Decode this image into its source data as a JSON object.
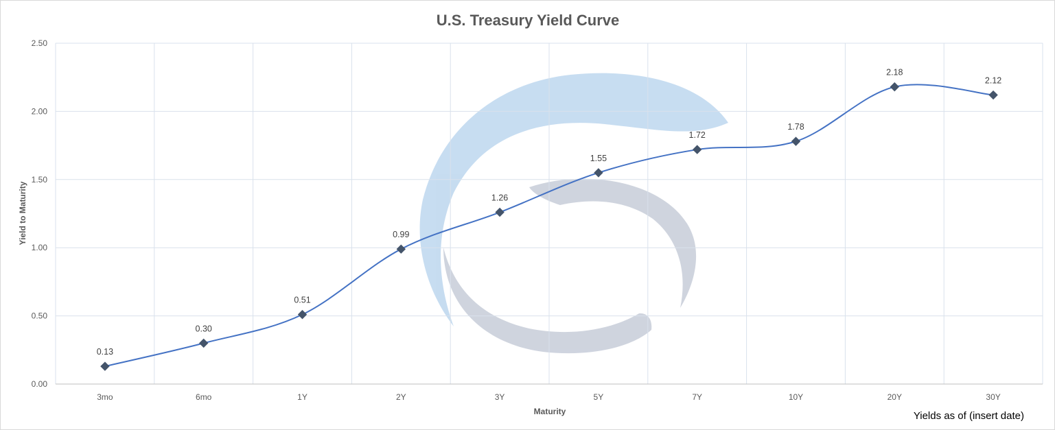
{
  "chart_data": {
    "type": "line",
    "title": "U.S. Treasury Yield Curve",
    "xlabel": "Maturity",
    "ylabel": "Yield to Maturity",
    "categories": [
      "3mo",
      "6mo",
      "1Y",
      "2Y",
      "3Y",
      "5Y",
      "7Y",
      "10Y",
      "20Y",
      "30Y"
    ],
    "series": [
      {
        "values": [
          0.13,
          0.3,
          0.51,
          0.99,
          1.26,
          1.55,
          1.72,
          1.78,
          2.18,
          2.12
        ]
      }
    ],
    "data_labels": [
      "0.13",
      "0.30",
      "0.51",
      "0.99",
      "1.26",
      "1.55",
      "1.72",
      "1.78",
      "2.18",
      "2.12"
    ],
    "ylim": [
      0,
      2.5
    ],
    "yticks": [
      "0.00",
      "0.50",
      "1.00",
      "1.50",
      "2.00",
      "2.50"
    ],
    "smooth": true,
    "marker": "diamond",
    "grid": true,
    "legend": "none"
  },
  "footnote": "Yields as of (insert date)",
  "colors": {
    "line": "#4472c4",
    "marker": "#44546a",
    "grid": "#d9e1ec",
    "watermark_blue": "#bdd7ee",
    "watermark_gray": "#c7cdd9"
  }
}
